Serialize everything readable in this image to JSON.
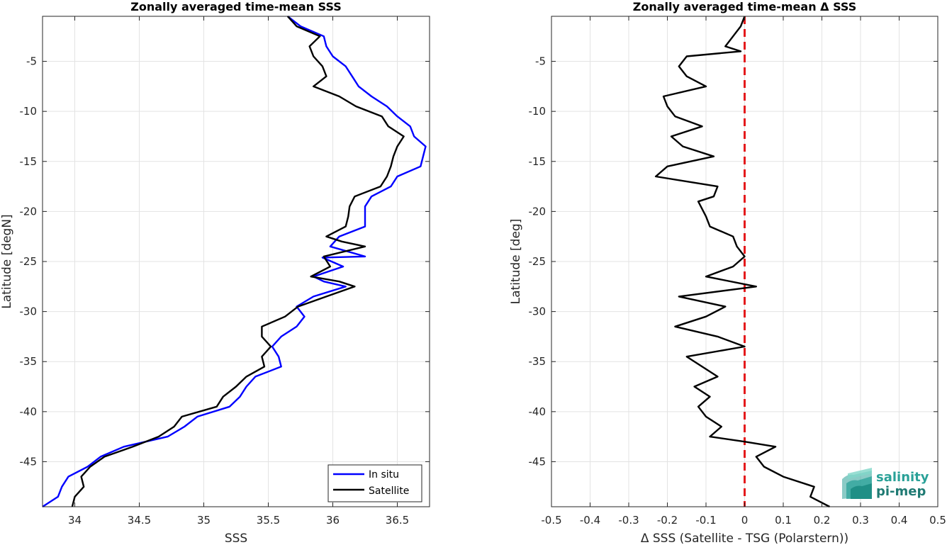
{
  "chart_data": [
    {
      "type": "line",
      "title": "Zonally averaged time-mean SSS",
      "xlabel": "SSS",
      "ylabel": "Latitude [degN]",
      "xlim": [
        33.75,
        36.75
      ],
      "ylim": [
        -49.5,
        -0.5
      ],
      "xticks": [
        "34",
        "34.5",
        "35",
        "35.5",
        "36",
        "36.5"
      ],
      "xtick_values": [
        34,
        34.5,
        35,
        35.5,
        36,
        36.5
      ],
      "yticks": [
        "-5",
        "-10",
        "-15",
        "-20",
        "-25",
        "-30",
        "-35",
        "-40",
        "-45"
      ],
      "ytick_values": [
        -5,
        -10,
        -15,
        -20,
        -25,
        -30,
        -35,
        -40,
        -45
      ],
      "grid": true,
      "legend": {
        "placement": "bottom-right",
        "entries": [
          "In situ",
          "Satellite"
        ]
      },
      "series": [
        {
          "name": "In situ",
          "color": "#0000ff",
          "points": [
            [
              35.65,
              -0.5
            ],
            [
              35.75,
              -1.5
            ],
            [
              35.93,
              -2.5
            ],
            [
              35.95,
              -3.5
            ],
            [
              36.0,
              -4.5
            ],
            [
              36.1,
              -5.5
            ],
            [
              36.15,
              -6.5
            ],
            [
              36.2,
              -7.5
            ],
            [
              36.3,
              -8.5
            ],
            [
              36.42,
              -9.5
            ],
            [
              36.5,
              -10.5
            ],
            [
              36.6,
              -11.5
            ],
            [
              36.63,
              -12.5
            ],
            [
              36.72,
              -13.5
            ],
            [
              36.7,
              -14.5
            ],
            [
              36.68,
              -15.5
            ],
            [
              36.5,
              -16.5
            ],
            [
              36.45,
              -17.5
            ],
            [
              36.3,
              -18.5
            ],
            [
              36.25,
              -19.5
            ],
            [
              36.25,
              -20.5
            ],
            [
              36.25,
              -21.5
            ],
            [
              36.05,
              -22.5
            ],
            [
              35.98,
              -23.5
            ],
            [
              36.25,
              -24.5
            ],
            [
              35.92,
              -24.6
            ],
            [
              36.08,
              -25.5
            ],
            [
              35.85,
              -26.5
            ],
            [
              35.93,
              -27.0
            ],
            [
              36.1,
              -27.5
            ],
            [
              35.85,
              -28.5
            ],
            [
              35.72,
              -29.5
            ],
            [
              35.78,
              -30.5
            ],
            [
              35.72,
              -31.5
            ],
            [
              35.6,
              -32.5
            ],
            [
              35.53,
              -33.5
            ],
            [
              35.58,
              -34.5
            ],
            [
              35.6,
              -35.5
            ],
            [
              35.4,
              -36.5
            ],
            [
              35.33,
              -37.5
            ],
            [
              35.28,
              -38.5
            ],
            [
              35.2,
              -39.5
            ],
            [
              34.95,
              -40.5
            ],
            [
              34.85,
              -41.5
            ],
            [
              34.72,
              -42.5
            ],
            [
              34.38,
              -43.5
            ],
            [
              34.2,
              -44.5
            ],
            [
              34.1,
              -45.5
            ],
            [
              33.95,
              -46.5
            ],
            [
              33.9,
              -47.5
            ],
            [
              33.87,
              -48.5
            ],
            [
              33.75,
              -49.5
            ]
          ]
        },
        {
          "name": "Satellite",
          "color": "#000000",
          "points": [
            [
              35.65,
              -0.5
            ],
            [
              35.72,
              -1.5
            ],
            [
              35.9,
              -2.5
            ],
            [
              35.82,
              -3.5
            ],
            [
              35.85,
              -4.5
            ],
            [
              35.92,
              -5.5
            ],
            [
              35.95,
              -6.5
            ],
            [
              35.85,
              -7.5
            ],
            [
              36.05,
              -8.5
            ],
            [
              36.18,
              -9.5
            ],
            [
              36.38,
              -10.5
            ],
            [
              36.43,
              -11.5
            ],
            [
              36.55,
              -12.5
            ],
            [
              36.5,
              -13.5
            ],
            [
              36.47,
              -14.5
            ],
            [
              36.45,
              -15.5
            ],
            [
              36.42,
              -16.5
            ],
            [
              36.37,
              -17.5
            ],
            [
              36.17,
              -18.5
            ],
            [
              36.13,
              -19.5
            ],
            [
              36.12,
              -20.5
            ],
            [
              36.1,
              -21.5
            ],
            [
              35.95,
              -22.5
            ],
            [
              36.07,
              -23.0
            ],
            [
              36.25,
              -23.5
            ],
            [
              35.93,
              -24.5
            ],
            [
              35.98,
              -25.5
            ],
            [
              35.83,
              -26.5
            ],
            [
              36.05,
              -27.0
            ],
            [
              36.17,
              -27.5
            ],
            [
              35.95,
              -28.5
            ],
            [
              35.73,
              -29.5
            ],
            [
              35.63,
              -30.5
            ],
            [
              35.45,
              -31.5
            ],
            [
              35.45,
              -32.5
            ],
            [
              35.52,
              -33.5
            ],
            [
              35.45,
              -34.5
            ],
            [
              35.47,
              -35.5
            ],
            [
              35.33,
              -36.5
            ],
            [
              35.25,
              -37.5
            ],
            [
              35.15,
              -38.5
            ],
            [
              35.1,
              -39.5
            ],
            [
              34.83,
              -40.5
            ],
            [
              34.77,
              -41.5
            ],
            [
              34.65,
              -42.5
            ],
            [
              34.45,
              -43.5
            ],
            [
              34.23,
              -44.5
            ],
            [
              34.12,
              -45.5
            ],
            [
              34.05,
              -46.5
            ],
            [
              34.07,
              -47.5
            ],
            [
              34.0,
              -48.5
            ],
            [
              33.98,
              -49.5
            ]
          ]
        }
      ]
    },
    {
      "type": "line",
      "title": "Zonally averaged time-mean Δ SSS",
      "xlabel": "Δ SSS (Satellite - TSG (Polarstern))",
      "ylabel": "Latitude [deg]",
      "xlim": [
        -0.5,
        0.5
      ],
      "ylim": [
        -49.5,
        -0.5
      ],
      "xticks": [
        "-0.5",
        "-0.4",
        "-0.3",
        "-0.2",
        "-0.1",
        "0",
        "0.1",
        "0.2",
        "0.3",
        "0.4",
        "0.5"
      ],
      "xtick_values": [
        -0.5,
        -0.4,
        -0.3,
        -0.2,
        -0.1,
        0,
        0.1,
        0.2,
        0.3,
        0.4,
        0.5
      ],
      "yticks": [
        "-5",
        "-10",
        "-15",
        "-20",
        "-25",
        "-30",
        "-35",
        "-40",
        "-45"
      ],
      "ytick_values": [
        -5,
        -10,
        -15,
        -20,
        -25,
        -30,
        -35,
        -40,
        -45
      ],
      "grid": true,
      "reference_line": {
        "x": 0,
        "color": "#e41a1c",
        "style": "dashed"
      },
      "series": [
        {
          "color": "#000000",
          "points": [
            [
              0.0,
              -0.5
            ],
            [
              -0.01,
              -1.5
            ],
            [
              -0.03,
              -2.5
            ],
            [
              -0.05,
              -3.5
            ],
            [
              -0.01,
              -4.0
            ],
            [
              -0.15,
              -4.5
            ],
            [
              -0.17,
              -5.5
            ],
            [
              -0.15,
              -6.5
            ],
            [
              -0.1,
              -7.5
            ],
            [
              -0.21,
              -8.5
            ],
            [
              -0.2,
              -9.5
            ],
            [
              -0.18,
              -10.5
            ],
            [
              -0.11,
              -11.5
            ],
            [
              -0.19,
              -12.5
            ],
            [
              -0.16,
              -13.5
            ],
            [
              -0.08,
              -14.5
            ],
            [
              -0.2,
              -15.5
            ],
            [
              -0.23,
              -16.5
            ],
            [
              -0.07,
              -17.5
            ],
            [
              -0.08,
              -18.5
            ],
            [
              -0.12,
              -19.0
            ],
            [
              -0.1,
              -20.5
            ],
            [
              -0.09,
              -21.5
            ],
            [
              -0.03,
              -22.5
            ],
            [
              -0.02,
              -23.5
            ],
            [
              0.0,
              -24.5
            ],
            [
              -0.03,
              -25.5
            ],
            [
              -0.1,
              -26.5
            ],
            [
              0.03,
              -27.5
            ],
            [
              -0.17,
              -28.5
            ],
            [
              -0.05,
              -29.5
            ],
            [
              -0.1,
              -30.5
            ],
            [
              -0.18,
              -31.5
            ],
            [
              -0.07,
              -32.5
            ],
            [
              0.0,
              -33.5
            ],
            [
              -0.15,
              -34.5
            ],
            [
              -0.11,
              -35.5
            ],
            [
              -0.07,
              -36.5
            ],
            [
              -0.13,
              -37.5
            ],
            [
              -0.09,
              -38.5
            ],
            [
              -0.12,
              -39.5
            ],
            [
              -0.1,
              -40.5
            ],
            [
              -0.06,
              -41.5
            ],
            [
              -0.09,
              -42.5
            ],
            [
              0.0,
              -43.0
            ],
            [
              0.08,
              -43.5
            ],
            [
              0.03,
              -44.5
            ],
            [
              0.05,
              -45.5
            ],
            [
              0.1,
              -46.5
            ],
            [
              0.18,
              -47.5
            ],
            [
              0.17,
              -48.5
            ],
            [
              0.22,
              -49.5
            ]
          ]
        }
      ]
    }
  ],
  "logo": {
    "line1": "salinity",
    "line2": "pi-mep",
    "color": "#2aa198"
  }
}
